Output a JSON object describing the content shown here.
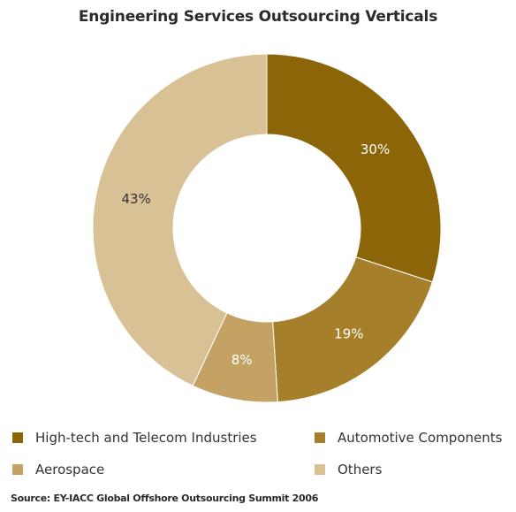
{
  "chart_data": {
    "type": "pie",
    "title": "Engineering Services Outsourcing Verticals",
    "donut": true,
    "categories": [
      "High-tech and Telecom Industries",
      "Automotive Components",
      "Aerospace",
      "Others"
    ],
    "values": [
      30,
      19,
      8,
      43
    ],
    "value_labels": [
      "30%",
      "19%",
      "8%",
      "43%"
    ],
    "colors": [
      "#8b6508",
      "#a67f2b",
      "#c4a264",
      "#d9c196"
    ],
    "label_colors": [
      "#ffffff",
      "#ffffff",
      "#ffffff",
      "#333333"
    ],
    "legend_position": "bottom",
    "legend": [
      "High-tech and Telecom Industries",
      "Automotive Components",
      "Aerospace",
      "Others"
    ],
    "source": "Source: EY-IACC Global Offshore Outsourcing Summit 2006"
  }
}
